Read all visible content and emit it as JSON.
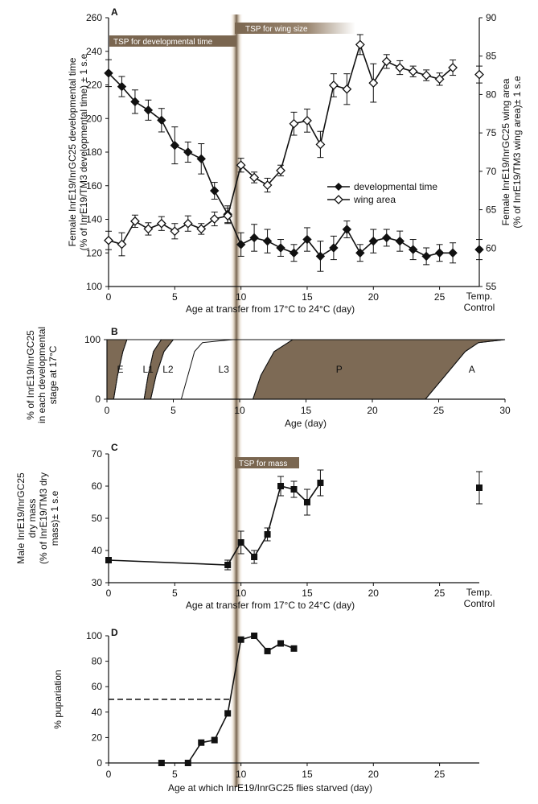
{
  "chart_data": [
    {
      "panel": "A",
      "type": "line",
      "xlabel": "Age at transfer from 17°C to 24°C (day)",
      "ylabel_left": [
        "Female InrE19/InrGC25 developmental time",
        "(% of InrE19/TM3 developmental time) ± 1 s.e"
      ],
      "ylabel_right": [
        "Female InrE19/InrGC25 wing area",
        "(% of InrE19/TM3 wing area)± 1 s.e"
      ],
      "ylim_left": [
        100,
        260
      ],
      "ylim_right": [
        55,
        90
      ],
      "xlim": [
        0,
        28
      ],
      "x_ticks": [
        "0",
        "5",
        "10",
        "15",
        "20",
        "25"
      ],
      "y_ticks_left": [
        "100",
        "120",
        "140",
        "160",
        "180",
        "200",
        "220",
        "240",
        "260"
      ],
      "y_ticks_right": [
        "55",
        "60",
        "65",
        "70",
        "75",
        "80",
        "85",
        "90"
      ],
      "control_label": [
        "Temp.",
        "Control"
      ],
      "tsp_dev_label": "TSP for developmental time",
      "tsp_wing_label": "TSP for wing size",
      "legend": [
        "developmental time",
        "wing area"
      ],
      "series": [
        {
          "name": "developmental time",
          "axis": "left",
          "marker": "filled-diamond",
          "x": [
            0,
            1,
            2,
            3,
            4,
            5,
            6,
            7,
            8,
            9,
            10,
            11,
            12,
            13,
            14,
            15,
            16,
            17,
            18,
            19,
            20,
            21,
            22,
            23,
            24,
            25,
            26
          ],
          "values": [
            227,
            219,
            210,
            205,
            199,
            184,
            180,
            176,
            157,
            143,
            125,
            129,
            127,
            123,
            120,
            128,
            118,
            123,
            134,
            120,
            127,
            129,
            127,
            122,
            118,
            120,
            120
          ],
          "err": [
            8,
            6,
            7,
            6,
            7,
            11,
            6,
            9,
            5,
            5,
            7,
            8,
            7,
            5,
            5,
            7,
            9,
            7,
            5,
            5,
            7,
            5,
            6,
            6,
            5,
            5,
            6
          ],
          "control": 122,
          "control_err": 6
        },
        {
          "name": "wing area",
          "axis": "right",
          "marker": "open-diamond",
          "x": [
            0,
            1,
            2,
            3,
            4,
            5,
            6,
            7,
            8,
            9,
            10,
            11,
            12,
            13,
            14,
            15,
            16,
            17,
            18,
            19,
            20,
            21,
            22,
            23,
            24,
            25,
            26
          ],
          "values": [
            61,
            60.5,
            63.5,
            62.5,
            63.2,
            62.2,
            63.2,
            62.5,
            63.8,
            64.2,
            70.8,
            69.2,
            68.2,
            70.1,
            76.2,
            76.6,
            73.5,
            81.2,
            80.7,
            86.5,
            81.5,
            84.3,
            83.5,
            83.0,
            82.5,
            82.0,
            83.5
          ],
          "err": [
            1.2,
            1.5,
            0.8,
            0.8,
            0.9,
            1.0,
            1.0,
            0.7,
            0.9,
            1.0,
            0.9,
            0.7,
            0.9,
            0.7,
            1.5,
            1.5,
            1.7,
            1.5,
            2.0,
            1.3,
            2.5,
            0.9,
            0.9,
            0.7,
            0.7,
            0.8,
            1.0
          ],
          "control": 82.6,
          "control_err": 1.1
        }
      ]
    },
    {
      "panel": "B",
      "type": "area",
      "xlabel": "Age (day)",
      "ylabel": [
        "% of InrE19/InrGC25",
        "in each developmental",
        "stage at 17°C"
      ],
      "ylim": [
        0,
        100
      ],
      "xlim": [
        0,
        30
      ],
      "x_ticks": [
        "0",
        "5",
        "10",
        "15",
        "20",
        "25",
        "30"
      ],
      "y_ticks": [
        "0",
        "100"
      ],
      "stages": [
        "E",
        "L1",
        "L2",
        "L3",
        "P",
        "A"
      ],
      "boundaries": [
        [
          [
            0.5,
            0
          ],
          [
            0.8,
            40
          ],
          [
            1.2,
            80
          ],
          [
            1.5,
            100
          ]
        ],
        [
          [
            2.8,
            0
          ],
          [
            3.1,
            40
          ],
          [
            3.5,
            80
          ],
          [
            4.1,
            100
          ]
        ],
        [
          [
            3.3,
            0
          ],
          [
            3.7,
            40
          ],
          [
            4.3,
            80
          ],
          [
            5.0,
            100
          ]
        ],
        [
          [
            5.6,
            0
          ],
          [
            6.1,
            40
          ],
          [
            6.6,
            80
          ],
          [
            7.2,
            95
          ],
          [
            8.5,
            98
          ],
          [
            9.5,
            100
          ]
        ],
        [
          [
            11.0,
            0
          ],
          [
            11.6,
            40
          ],
          [
            12.6,
            80
          ],
          [
            14.0,
            100
          ]
        ],
        [
          [
            24.0,
            0
          ],
          [
            25.5,
            40
          ],
          [
            27.0,
            80
          ],
          [
            28.0,
            95
          ],
          [
            30,
            100
          ]
        ]
      ]
    },
    {
      "panel": "C",
      "type": "line",
      "xlabel": "Age at transfer from 17°C to 24°C (day)",
      "ylabel": [
        "Male InrE19/InrGC25",
        "dry mass",
        "(% of InrE19/TM3 dry",
        "mass)± 1 s.e"
      ],
      "ylim": [
        30,
        70
      ],
      "xlim": [
        0,
        28
      ],
      "x_ticks": [
        "0",
        "5",
        "10",
        "15",
        "20",
        "25"
      ],
      "y_ticks": [
        "30",
        "40",
        "50",
        "60",
        "70"
      ],
      "control_label": [
        "Temp.",
        "Control"
      ],
      "tsp_label": "TSP for mass",
      "series": [
        {
          "name": "",
          "marker": "filled-square",
          "x": [
            0,
            9,
            10,
            11,
            12,
            13,
            14,
            15,
            16
          ],
          "values": [
            37,
            35.5,
            42.5,
            38,
            45,
            60,
            59,
            55,
            61
          ],
          "err": [
            0,
            1.5,
            3.5,
            2,
            2,
            3,
            2.5,
            4,
            4
          ],
          "control": 59.5,
          "control_err": 5
        }
      ]
    },
    {
      "panel": "D",
      "type": "line",
      "xlabel": "Age at which InrE19/InrGC25 flies starved (day)",
      "ylabel": "% pupariation",
      "ylim": [
        0,
        100
      ],
      "xlim": [
        0,
        28
      ],
      "x_ticks": [
        "0",
        "5",
        "10",
        "15",
        "20",
        "25"
      ],
      "y_ticks": [
        "0",
        "20",
        "40",
        "60",
        "80",
        "100"
      ],
      "reference_line": 50,
      "series": [
        {
          "name": "",
          "marker": "filled-square",
          "x": [
            4,
            6,
            7,
            8,
            9,
            10,
            11,
            12,
            13,
            14
          ],
          "values": [
            0,
            0,
            16,
            18,
            39,
            97,
            100,
            88,
            94,
            90
          ]
        }
      ]
    }
  ]
}
